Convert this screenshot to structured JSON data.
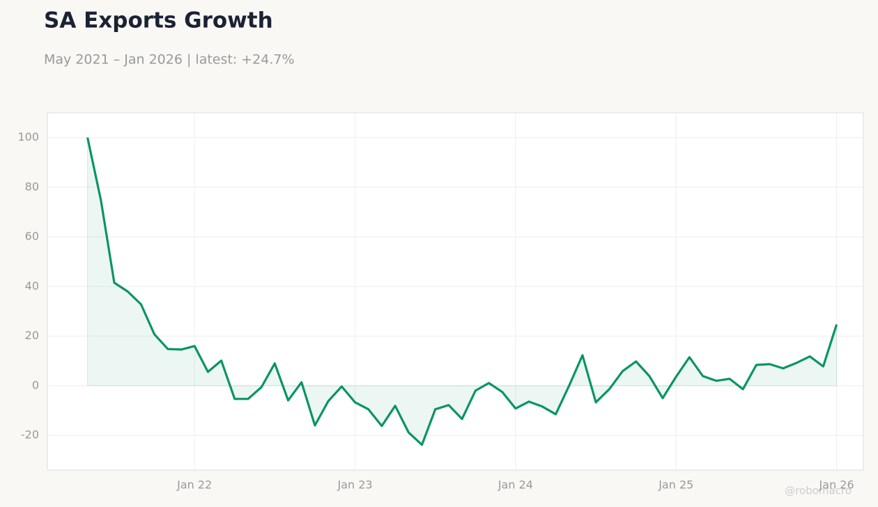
{
  "chart_data": {
    "type": "line",
    "title": "SA Exports Growth",
    "subtitle": "May 2021 – Jan 2026 | latest: +24.7%",
    "watermark": "@robomacro",
    "x": [
      "2021-05",
      "2021-06",
      "2021-07",
      "2021-08",
      "2021-09",
      "2021-10",
      "2021-11",
      "2021-12",
      "2022-01",
      "2022-02",
      "2022-03",
      "2022-04",
      "2022-05",
      "2022-06",
      "2022-07",
      "2022-08",
      "2022-09",
      "2022-10",
      "2022-11",
      "2022-12",
      "2023-01",
      "2023-02",
      "2023-03",
      "2023-04",
      "2023-05",
      "2023-06",
      "2023-07",
      "2023-08",
      "2023-09",
      "2023-10",
      "2023-11",
      "2023-12",
      "2024-01",
      "2024-02",
      "2024-03",
      "2024-04",
      "2024-05",
      "2024-06",
      "2024-07",
      "2024-08",
      "2024-09",
      "2024-10",
      "2024-11",
      "2024-12",
      "2025-01",
      "2025-02",
      "2025-03",
      "2025-04",
      "2025-05",
      "2025-06",
      "2025-07",
      "2025-08",
      "2025-09",
      "2025-10",
      "2025-11",
      "2025-12",
      "2026-01"
    ],
    "series": [
      {
        "name": "SA Exports Growth",
        "color": "#0a9466",
        "fill": true,
        "values": [
          100,
          74.8,
          41.5,
          38,
          32.8,
          20.7,
          14.8,
          14.6,
          16,
          5.6,
          10.1,
          -5.3,
          -5.3,
          -0.6,
          9,
          -5.9,
          1.4,
          -16,
          -6.2,
          -0.3,
          -6.7,
          -9.5,
          -16.2,
          -8.1,
          -18.8,
          -23.8,
          -9.5,
          -7.8,
          -13.4,
          -2,
          1.1,
          -2.5,
          -9.2,
          -6.4,
          -8.4,
          -11.5,
          0,
          12.3,
          -6.7,
          -1.4,
          5.9,
          9.8,
          3.9,
          -5,
          3.6,
          11.5,
          3.9,
          2,
          2.8,
          -1.4,
          8.4,
          8.7,
          7,
          9.2,
          11.8,
          7.8,
          24.7
        ]
      }
    ],
    "xlim": [
      "2021-02",
      "2026-03"
    ],
    "xticks": [
      {
        "value": "2022-01",
        "label": "Jan 22"
      },
      {
        "value": "2023-01",
        "label": "Jan 23"
      },
      {
        "value": "2024-01",
        "label": "Jan 24"
      },
      {
        "value": "2025-01",
        "label": "Jan 25"
      },
      {
        "value": "2026-01",
        "label": "Jan 26"
      }
    ],
    "ylim": [
      -34,
      110
    ],
    "yticks": [
      -20,
      0,
      20,
      40,
      60,
      80,
      100
    ],
    "grid": true
  }
}
